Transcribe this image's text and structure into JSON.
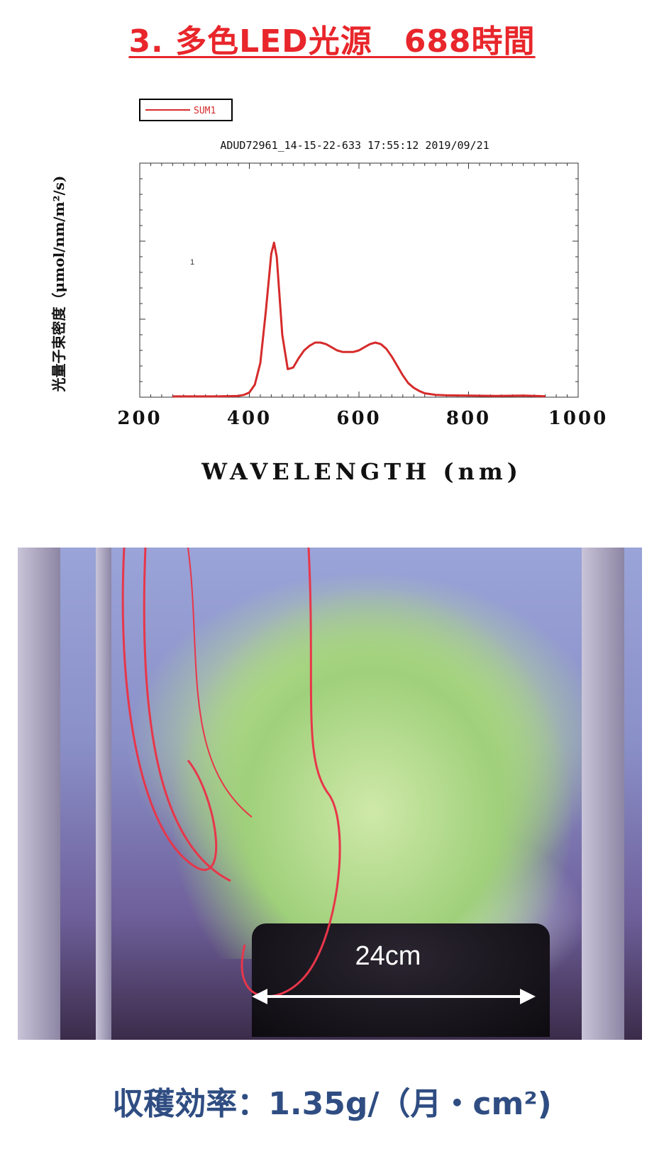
{
  "title": "3. 多色LED光源　688時間",
  "chart_data": {
    "type": "line",
    "legend": [
      "SUM1"
    ],
    "subtitle": "ADUD72961_14-15-22-633 17:55:12  2019/09/21",
    "annotation": "1",
    "xlabel": "WAVELENGTH (nm)",
    "ylabel": "光量子束密度（μmol/nm/m²/s)",
    "xlim": [
      200,
      1000
    ],
    "ylim": [
      0,
      1.5
    ],
    "xticks": [
      200,
      400,
      600,
      800,
      1000
    ],
    "series_color": "#d62b2b",
    "series": [
      {
        "name": "SUM1",
        "x": [
          260,
          300,
          340,
          380,
          390,
          400,
          410,
          420,
          430,
          440,
          445,
          450,
          455,
          460,
          470,
          480,
          490,
          500,
          510,
          520,
          530,
          540,
          550,
          560,
          570,
          580,
          590,
          600,
          610,
          620,
          630,
          640,
          650,
          660,
          670,
          680,
          690,
          700,
          710,
          720,
          730,
          740,
          760,
          800,
          850,
          900,
          940
        ],
        "values": [
          0.005,
          0.005,
          0.005,
          0.008,
          0.015,
          0.03,
          0.08,
          0.22,
          0.55,
          0.92,
          0.99,
          0.9,
          0.65,
          0.4,
          0.18,
          0.19,
          0.25,
          0.3,
          0.33,
          0.35,
          0.35,
          0.34,
          0.32,
          0.3,
          0.29,
          0.29,
          0.29,
          0.3,
          0.32,
          0.34,
          0.35,
          0.34,
          0.31,
          0.26,
          0.2,
          0.14,
          0.09,
          0.06,
          0.04,
          0.025,
          0.02,
          0.015,
          0.012,
          0.01,
          0.008,
          0.01,
          0.006
        ]
      }
    ]
  },
  "photo": {
    "dimension_label": "24cm"
  },
  "footer": "収穫効率：1.35g/（月・cm²)"
}
